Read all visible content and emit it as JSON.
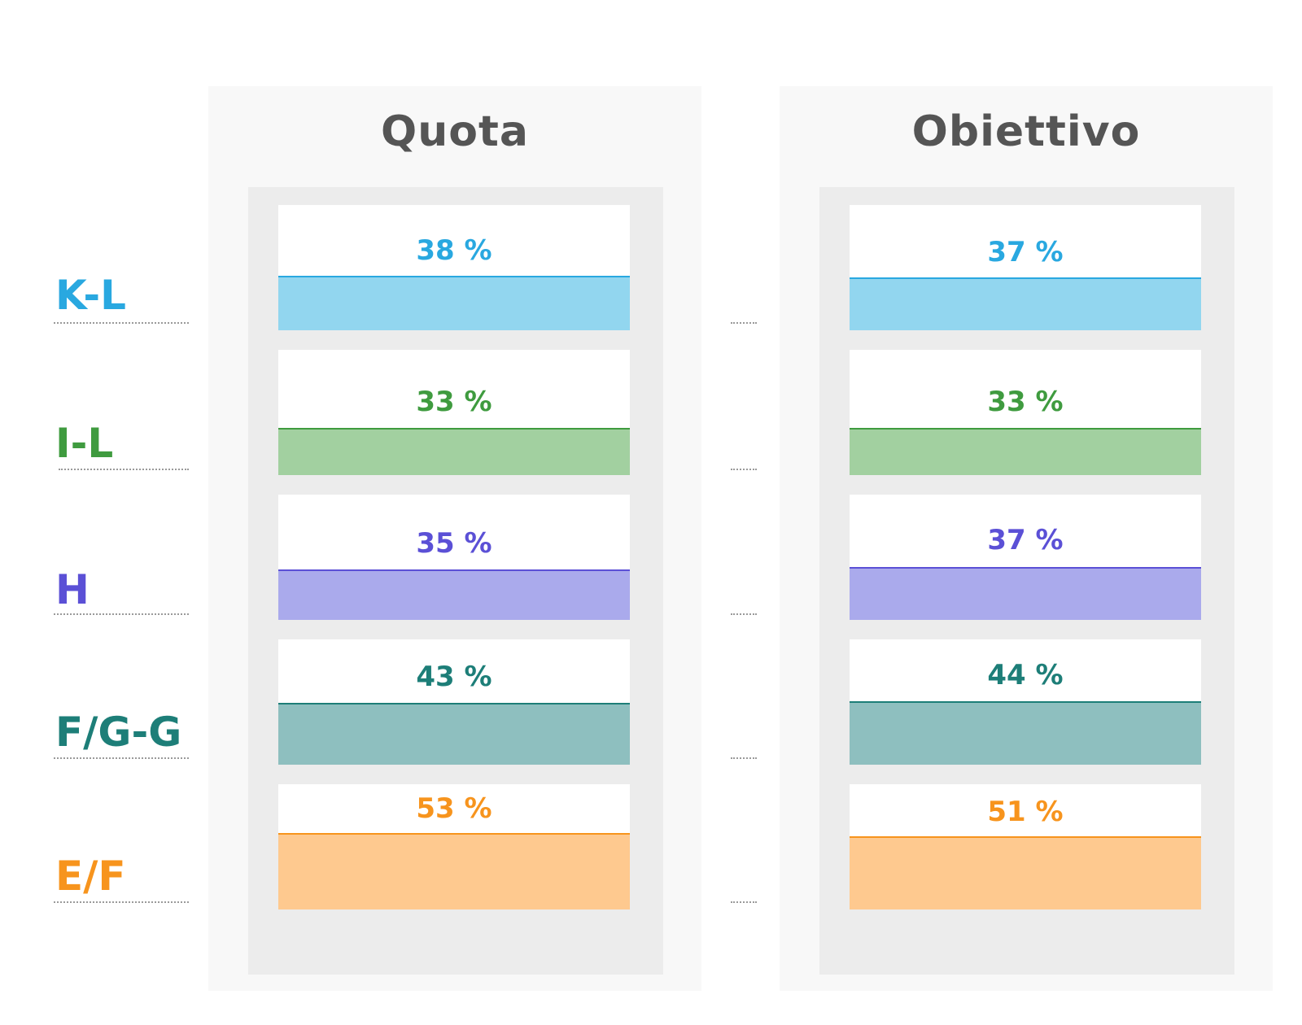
{
  "panels": [
    {
      "title": "Quota"
    },
    {
      "title": "Obiettivo"
    }
  ],
  "categories": [
    {
      "name": "K-L",
      "color": "#29a8e0",
      "fill": "#92d6ef",
      "quota": "38 %",
      "obiettivo": "37 %"
    },
    {
      "name": "I-L",
      "color": "#3f9b3f",
      "fill": "#a2d0a0",
      "quota": "33 %",
      "obiettivo": "33 %"
    },
    {
      "name": "H",
      "color": "#5b50d6",
      "fill": "#aaaaec",
      "quota": "35 %",
      "obiettivo": "37 %"
    },
    {
      "name": "F/G-G",
      "color": "#1d7e78",
      "fill": "#8ebfbf",
      "quota": "43 %",
      "obiettivo": "44 %"
    },
    {
      "name": "E/F",
      "color": "#f7941d",
      "fill": "#fec98f",
      "quota": "53 %",
      "obiettivo": "51 %"
    }
  ],
  "chart_data": {
    "type": "bar",
    "categories": [
      "K-L",
      "I-L",
      "H",
      "F/G-G",
      "E/F"
    ],
    "series": [
      {
        "name": "Quota",
        "values": [
          38,
          33,
          35,
          43,
          53
        ]
      },
      {
        "name": "Obiettivo",
        "values": [
          37,
          33,
          37,
          44,
          51
        ]
      }
    ],
    "unit": "%"
  }
}
